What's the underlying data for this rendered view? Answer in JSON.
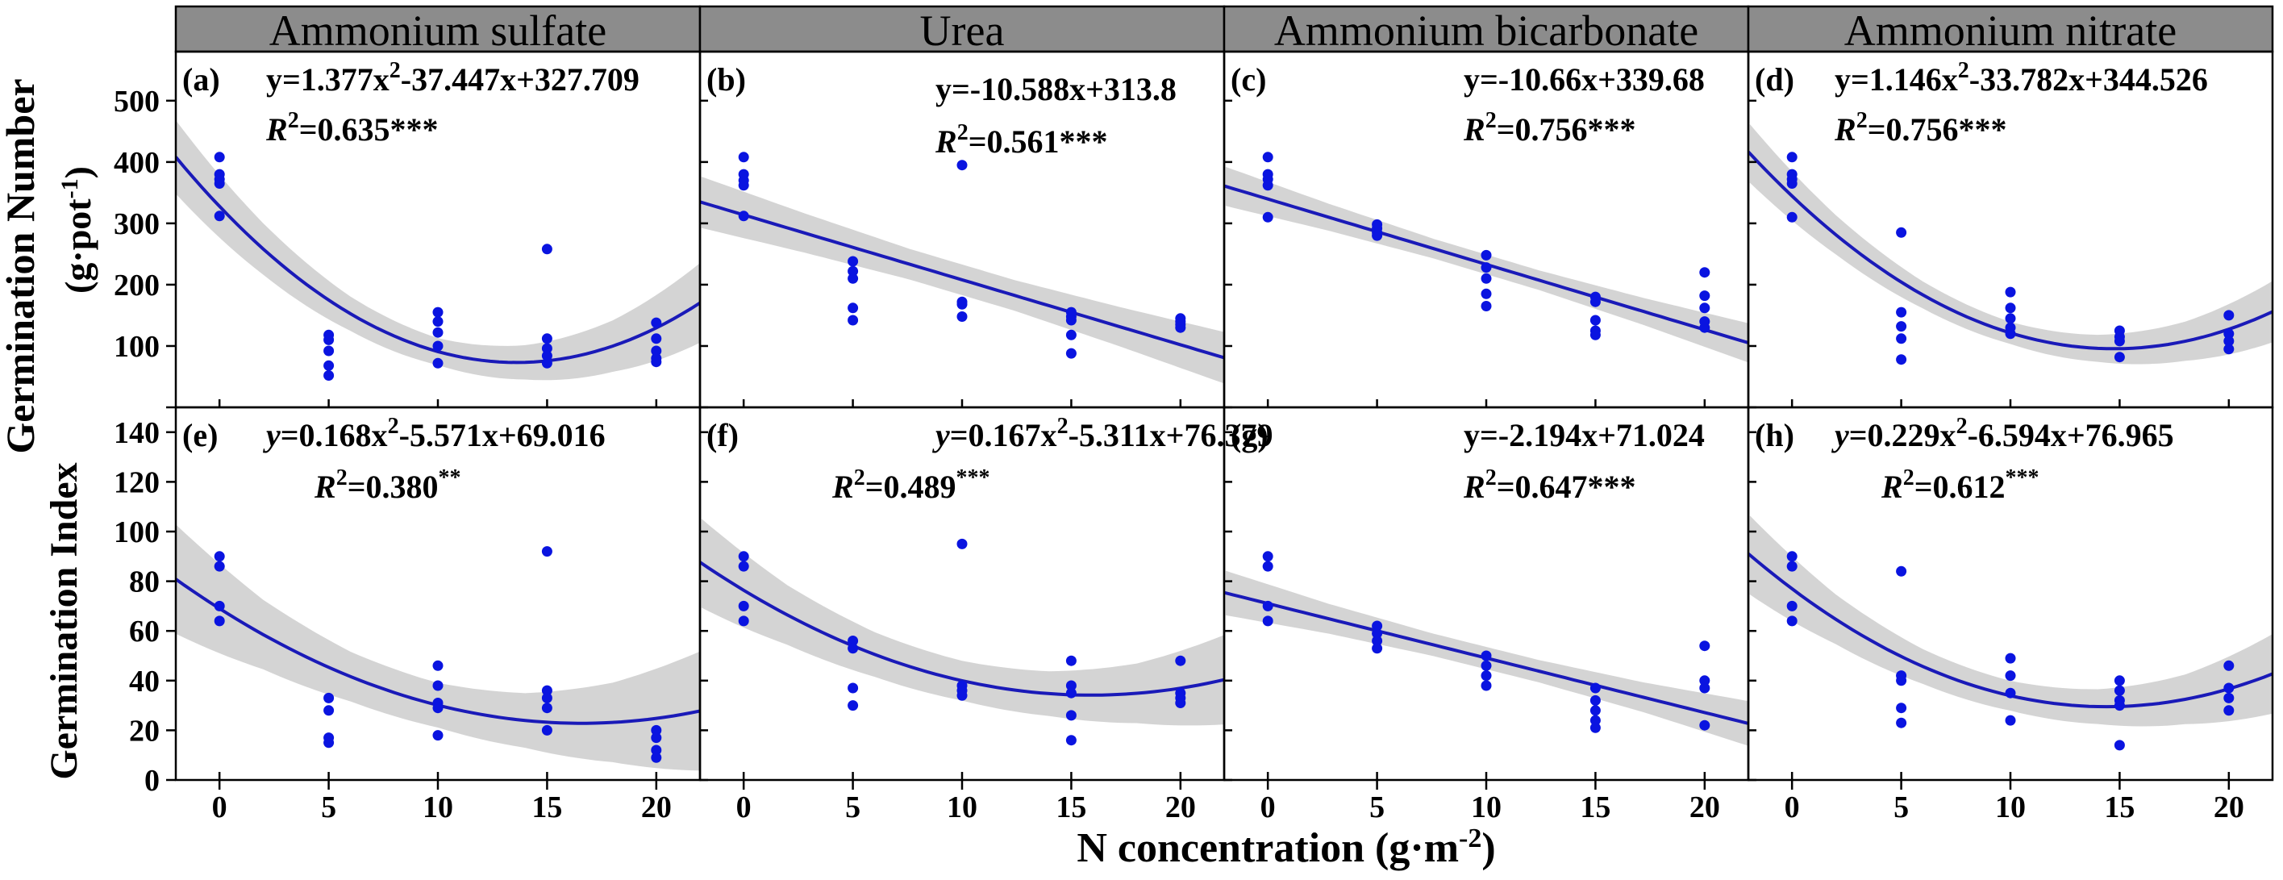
{
  "colors": {
    "points": "#0a14e0",
    "fit": "#1a1ab8",
    "band": "#cccccc",
    "header": "#8c8c8c"
  },
  "ylabel_top": "Germination Number",
  "ylabel_top_unit": "(g·pot",
  "ylabel_top_unit_sup": "-1",
  "ylabel_top_unit_end": ")",
  "ylabel_bottom": "Germination Index",
  "xlabel": "N concentration (g·m",
  "xlabel_sup": "-2",
  "xlabel_end": ")",
  "columns": [
    "Ammonium sulfate",
    "Urea",
    "Ammonium bicarbonate",
    "Ammonium nitrate"
  ],
  "chart_data": [
    {
      "type": "scatter",
      "panel": "(a)",
      "fertilizer": "Ammonium sulfate",
      "metric": "Germination Number",
      "x_ticks": [
        0,
        5,
        10,
        15,
        20
      ],
      "xlim": [
        -2,
        22
      ],
      "ylim": [
        0,
        580
      ],
      "y_ticks": [
        0,
        100,
        200,
        300,
        400,
        500
      ],
      "equation": {
        "y": "y=",
        "t1": "1.377x",
        "t1sup": "2",
        "t2": "-37.447x+327.709",
        "r": "R",
        "rsup": "2",
        "rval": "=0.635",
        "stars": "***"
      },
      "fit": {
        "form": "quadratic",
        "coef": [
          1.377,
          -37.447,
          327.709
        ]
      },
      "band_halfwidth": [
        60,
        42,
        28,
        22,
        28,
        42,
        65
      ],
      "points": [
        [
          0,
          408
        ],
        [
          0,
          380
        ],
        [
          0,
          372
        ],
        [
          0,
          365
        ],
        [
          0,
          312
        ],
        [
          5,
          118
        ],
        [
          5,
          110
        ],
        [
          5,
          92
        ],
        [
          5,
          68
        ],
        [
          5,
          52
        ],
        [
          10,
          155
        ],
        [
          10,
          140
        ],
        [
          10,
          122
        ],
        [
          10,
          100
        ],
        [
          10,
          72
        ],
        [
          15,
          258
        ],
        [
          15,
          112
        ],
        [
          15,
          96
        ],
        [
          15,
          84
        ],
        [
          15,
          72
        ],
        [
          20,
          138
        ],
        [
          20,
          112
        ],
        [
          20,
          92
        ],
        [
          20,
          80
        ],
        [
          20,
          74
        ]
      ]
    },
    {
      "type": "scatter",
      "panel": "(b)",
      "fertilizer": "Urea",
      "metric": "Germination Number",
      "x_ticks": [
        0,
        5,
        10,
        15,
        20
      ],
      "xlim": [
        -2,
        22
      ],
      "ylim": [
        0,
        580
      ],
      "y_ticks": [
        0,
        100,
        200,
        300,
        400,
        500
      ],
      "equation": {
        "y": "y=",
        "t1": "-10.588x+313.8",
        "t1sup": "",
        "t2": "",
        "r": "R",
        "rsup": "2",
        "rval": "=0.561",
        "stars": "***"
      },
      "fit": {
        "form": "linear",
        "coef": [
          -10.588,
          313.8
        ]
      },
      "band_halfwidth": [
        42,
        32,
        25,
        25,
        32,
        42
      ],
      "points": [
        [
          0,
          408
        ],
        [
          0,
          380
        ],
        [
          0,
          370
        ],
        [
          0,
          362
        ],
        [
          0,
          312
        ],
        [
          5,
          238
        ],
        [
          5,
          222
        ],
        [
          5,
          210
        ],
        [
          5,
          162
        ],
        [
          5,
          142
        ],
        [
          10,
          395
        ],
        [
          10,
          172
        ],
        [
          10,
          168
        ],
        [
          10,
          148
        ],
        [
          15,
          155
        ],
        [
          15,
          148
        ],
        [
          15,
          142
        ],
        [
          15,
          118
        ],
        [
          15,
          88
        ],
        [
          20,
          145
        ],
        [
          20,
          140
        ],
        [
          20,
          135
        ],
        [
          20,
          130
        ]
      ]
    },
    {
      "type": "scatter",
      "panel": "(c)",
      "fertilizer": "Ammonium bicarbonate",
      "metric": "Germination Number",
      "x_ticks": [
        0,
        5,
        10,
        15,
        20
      ],
      "xlim": [
        -2,
        22
      ],
      "ylim": [
        0,
        580
      ],
      "y_ticks": [
        0,
        100,
        200,
        300,
        400,
        500
      ],
      "equation": {
        "y": "y=",
        "t1": "-10.66x+339.68",
        "t1sup": "",
        "t2": "",
        "r": "R",
        "rsup": "2",
        "rval": "=0.756",
        "stars": "***"
      },
      "fit": {
        "form": "linear",
        "coef": [
          -10.66,
          339.68
        ]
      },
      "band_halfwidth": [
        32,
        22,
        16,
        16,
        22,
        32
      ],
      "points": [
        [
          0,
          408
        ],
        [
          0,
          380
        ],
        [
          0,
          372
        ],
        [
          0,
          362
        ],
        [
          0,
          310
        ],
        [
          5,
          298
        ],
        [
          5,
          292
        ],
        [
          5,
          285
        ],
        [
          5,
          280
        ],
        [
          10,
          248
        ],
        [
          10,
          228
        ],
        [
          10,
          210
        ],
        [
          10,
          185
        ],
        [
          10,
          165
        ],
        [
          15,
          180
        ],
        [
          15,
          172
        ],
        [
          15,
          142
        ],
        [
          15,
          125
        ],
        [
          15,
          118
        ],
        [
          20,
          220
        ],
        [
          20,
          182
        ],
        [
          20,
          162
        ],
        [
          20,
          140
        ],
        [
          20,
          130
        ]
      ]
    },
    {
      "type": "scatter",
      "panel": "(d)",
      "fertilizer": "Ammonium nitrate",
      "metric": "Germination Number",
      "x_ticks": [
        0,
        5,
        10,
        15,
        20
      ],
      "xlim": [
        -2,
        22
      ],
      "ylim": [
        0,
        580
      ],
      "y_ticks": [
        0,
        100,
        200,
        300,
        400,
        500
      ],
      "equation": {
        "y": "y=",
        "t1": "1.146x",
        "t1sup": "2",
        "t2": "-33.782x+344.526",
        "r": "R",
        "rsup": "2",
        "rval": "=0.756",
        "stars": "***"
      },
      "fit": {
        "form": "quadratic",
        "coef": [
          1.146,
          -33.782,
          344.526
        ]
      },
      "band_halfwidth": [
        48,
        32,
        22,
        18,
        22,
        32,
        50
      ],
      "points": [
        [
          0,
          408
        ],
        [
          0,
          380
        ],
        [
          0,
          372
        ],
        [
          0,
          365
        ],
        [
          0,
          310
        ],
        [
          5,
          285
        ],
        [
          5,
          155
        ],
        [
          5,
          132
        ],
        [
          5,
          112
        ],
        [
          5,
          78
        ],
        [
          10,
          188
        ],
        [
          10,
          162
        ],
        [
          10,
          145
        ],
        [
          10,
          130
        ],
        [
          10,
          120
        ],
        [
          15,
          125
        ],
        [
          15,
          115
        ],
        [
          15,
          108
        ],
        [
          15,
          82
        ],
        [
          20,
          150
        ],
        [
          20,
          120
        ],
        [
          20,
          108
        ],
        [
          20,
          95
        ]
      ]
    },
    {
      "type": "scatter",
      "panel": "(e)",
      "fertilizer": "Ammonium sulfate",
      "metric": "Germination Index",
      "x_ticks": [
        0,
        5,
        10,
        15,
        20
      ],
      "xlim": [
        -2,
        22
      ],
      "ylim": [
        0,
        150
      ],
      "y_ticks": [
        0,
        20,
        40,
        60,
        80,
        100,
        120,
        140
      ],
      "equation": {
        "y": "y",
        "t1": "=0.168x",
        "t1sup": "2",
        "t2": "-5.571x+69.016",
        "r": "R",
        "rsup": "2",
        "rval": "=0.380",
        "stars": "**"
      },
      "fit": {
        "form": "quadratic",
        "coef": [
          0.168,
          -5.571,
          69.016
        ]
      },
      "band_halfwidth": [
        22,
        14,
        10,
        9,
        11,
        16,
        24
      ],
      "points": [
        [
          0,
          90
        ],
        [
          0,
          86
        ],
        [
          0,
          70
        ],
        [
          0,
          64
        ],
        [
          5,
          33
        ],
        [
          5,
          28
        ],
        [
          5,
          17
        ],
        [
          5,
          15
        ],
        [
          10,
          46
        ],
        [
          10,
          38
        ],
        [
          10,
          31
        ],
        [
          10,
          29
        ],
        [
          10,
          18
        ],
        [
          15,
          92
        ],
        [
          15,
          36
        ],
        [
          15,
          33
        ],
        [
          15,
          29
        ],
        [
          15,
          20
        ],
        [
          20,
          20
        ],
        [
          20,
          17
        ],
        [
          20,
          12
        ],
        [
          20,
          9
        ]
      ]
    },
    {
      "type": "scatter",
      "panel": "(f)",
      "fertilizer": "Urea",
      "metric": "Germination Index",
      "x_ticks": [
        0,
        5,
        10,
        15,
        20
      ],
      "xlim": [
        -2,
        22
      ],
      "ylim": [
        0,
        150
      ],
      "y_ticks": [
        0,
        20,
        40,
        60,
        80,
        100,
        120,
        140
      ],
      "equation": {
        "y": "y",
        "t1": "=0.167x",
        "t1sup": "2",
        "t2": "-5.311x+76.379",
        "r": "R",
        "rsup": "2",
        "rval": "=0.489",
        "stars": "***"
      },
      "fit": {
        "form": "quadratic",
        "coef": [
          0.167,
          -5.311,
          76.379
        ]
      },
      "band_halfwidth": [
        18,
        12,
        9,
        8,
        9,
        12,
        18
      ],
      "points": [
        [
          0,
          90
        ],
        [
          0,
          86
        ],
        [
          0,
          70
        ],
        [
          0,
          64
        ],
        [
          5,
          56
        ],
        [
          5,
          53
        ],
        [
          5,
          37
        ],
        [
          5,
          30
        ],
        [
          10,
          95
        ],
        [
          10,
          38
        ],
        [
          10,
          36
        ],
        [
          10,
          34
        ],
        [
          15,
          48
        ],
        [
          15,
          38
        ],
        [
          15,
          35
        ],
        [
          15,
          26
        ],
        [
          15,
          16
        ],
        [
          20,
          48
        ],
        [
          20,
          35
        ],
        [
          20,
          33
        ],
        [
          20,
          31
        ]
      ]
    },
    {
      "type": "scatter",
      "panel": "(g)",
      "fertilizer": "Ammonium bicarbonate",
      "metric": "Germination Index",
      "x_ticks": [
        0,
        5,
        10,
        15,
        20
      ],
      "xlim": [
        -2,
        22
      ],
      "ylim": [
        0,
        150
      ],
      "y_ticks": [
        0,
        20,
        40,
        60,
        80,
        100,
        120,
        140
      ],
      "equation": {
        "y": "y=",
        "t1": "-2.194x+71.024",
        "t1sup": "",
        "t2": "",
        "r": "R",
        "rsup": "2",
        "rval": "=0.647",
        "stars": "***"
      },
      "fit": {
        "form": "linear",
        "coef": [
          -2.194,
          71.024
        ]
      },
      "band_halfwidth": [
        9,
        6,
        4.5,
        4.5,
        6,
        9
      ],
      "points": [
        [
          0,
          90
        ],
        [
          0,
          86
        ],
        [
          0,
          70
        ],
        [
          0,
          64
        ],
        [
          5,
          62
        ],
        [
          5,
          59
        ],
        [
          5,
          56
        ],
        [
          5,
          53
        ],
        [
          10,
          50
        ],
        [
          10,
          46
        ],
        [
          10,
          42
        ],
        [
          10,
          38
        ],
        [
          15,
          37
        ],
        [
          15,
          32
        ],
        [
          15,
          28
        ],
        [
          15,
          24
        ],
        [
          15,
          21
        ],
        [
          20,
          54
        ],
        [
          20,
          40
        ],
        [
          20,
          37
        ],
        [
          20,
          22
        ]
      ]
    },
    {
      "type": "scatter",
      "panel": "(h)",
      "fertilizer": "Ammonium nitrate",
      "metric": "Germination Index",
      "x_ticks": [
        0,
        5,
        10,
        15,
        20
      ],
      "xlim": [
        -2,
        22
      ],
      "ylim": [
        0,
        150
      ],
      "y_ticks": [
        0,
        20,
        40,
        60,
        80,
        100,
        120,
        140
      ],
      "equation": {
        "y": "y",
        "t1": "=0.229x",
        "t1sup": "2",
        "t2": "-6.594x+76.965",
        "r": "R",
        "rsup": "2",
        "rval": "=0.612",
        "stars": "***"
      },
      "fit": {
        "form": "quadratic",
        "coef": [
          0.229,
          -6.594,
          76.965
        ]
      },
      "band_halfwidth": [
        16,
        10,
        7,
        6,
        7,
        10,
        16
      ],
      "points": [
        [
          0,
          90
        ],
        [
          0,
          86
        ],
        [
          0,
          70
        ],
        [
          0,
          64
        ],
        [
          5,
          84
        ],
        [
          5,
          42
        ],
        [
          5,
          40
        ],
        [
          5,
          29
        ],
        [
          5,
          23
        ],
        [
          10,
          49
        ],
        [
          10,
          42
        ],
        [
          10,
          35
        ],
        [
          10,
          24
        ],
        [
          15,
          40
        ],
        [
          15,
          36
        ],
        [
          15,
          32
        ],
        [
          15,
          30
        ],
        [
          15,
          14
        ],
        [
          20,
          46
        ],
        [
          20,
          37
        ],
        [
          20,
          33
        ],
        [
          20,
          28
        ]
      ]
    }
  ]
}
